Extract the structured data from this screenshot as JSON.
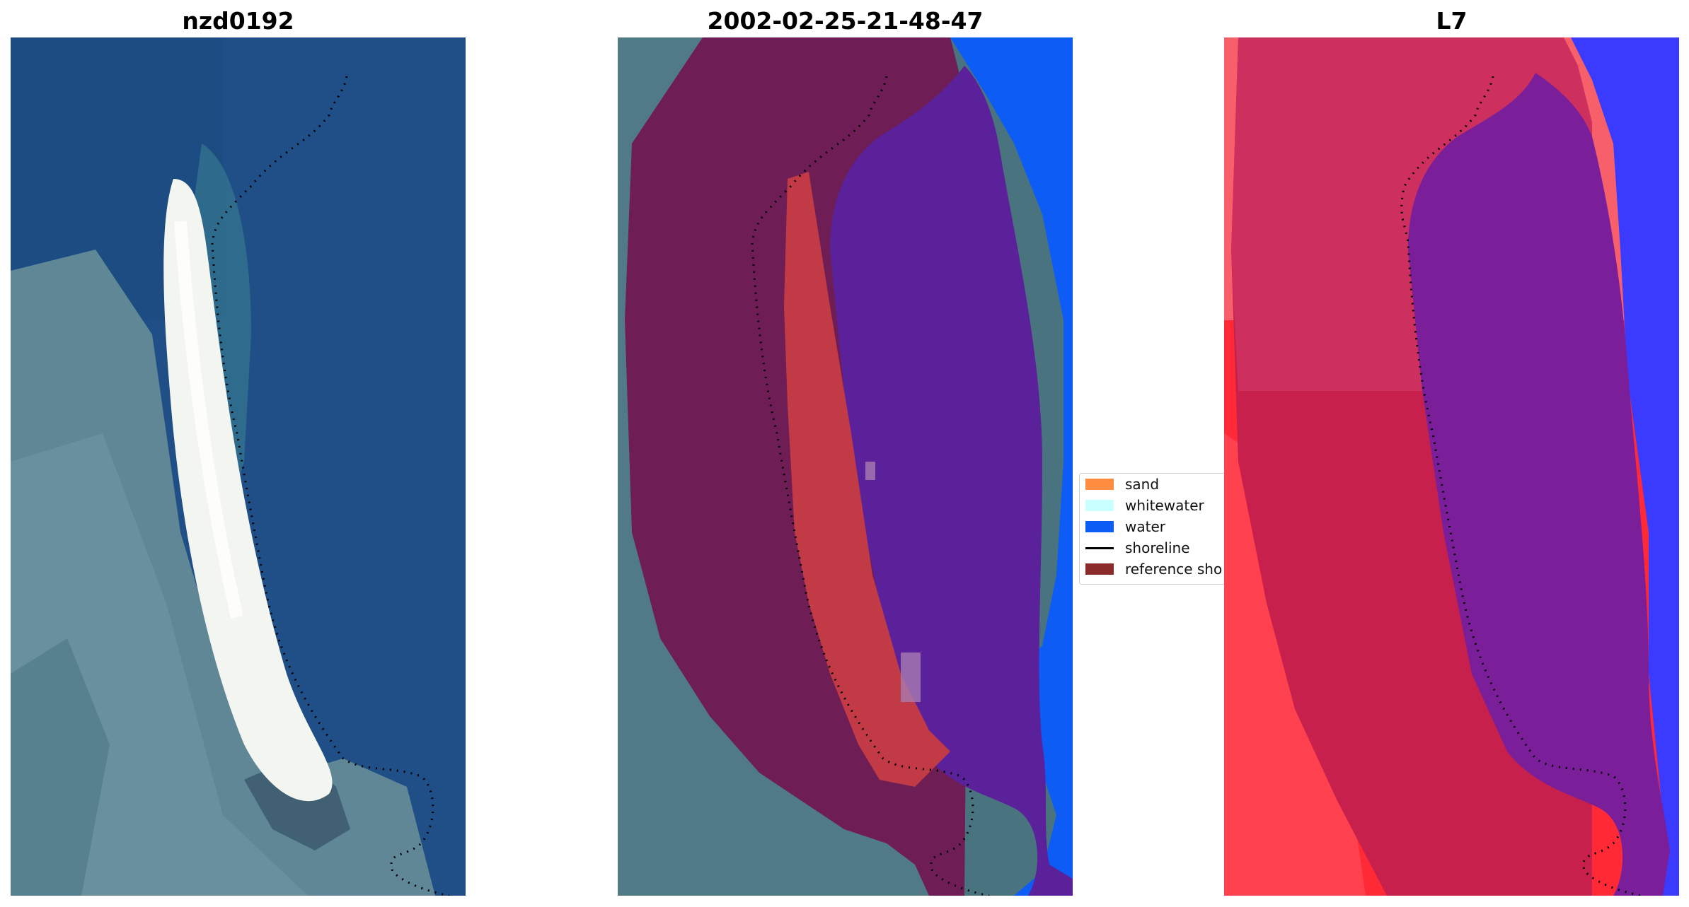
{
  "titles": {
    "left": "nzd0192",
    "middle": "2002-02-25-21-48-47",
    "right": "L7"
  },
  "legend": {
    "items": [
      {
        "label": "sand",
        "color": "#ff8c3f",
        "kind": "patch"
      },
      {
        "label": "whitewater",
        "color": "#c9ffff",
        "kind": "patch"
      },
      {
        "label": "water",
        "color": "#0d5cf5",
        "kind": "patch"
      },
      {
        "label": "shoreline",
        "color": "#000000",
        "kind": "line"
      },
      {
        "label": "reference sho",
        "color": "#8b2a2a",
        "kind": "patch"
      }
    ]
  },
  "colors": {
    "ocean": "#1f4f86",
    "land": "#5f8796",
    "beach": "#f3f5f0",
    "buffer": "#6e1d55",
    "water_class": "#0d5cf5",
    "sand_overlay": "#c13a45",
    "buffer_water": "#5a219a",
    "red_land": "#ff2a36",
    "red_buffer": "#c8204c",
    "purple_water": "#7a1e9a",
    "blue_edge": "#3b3bff"
  }
}
